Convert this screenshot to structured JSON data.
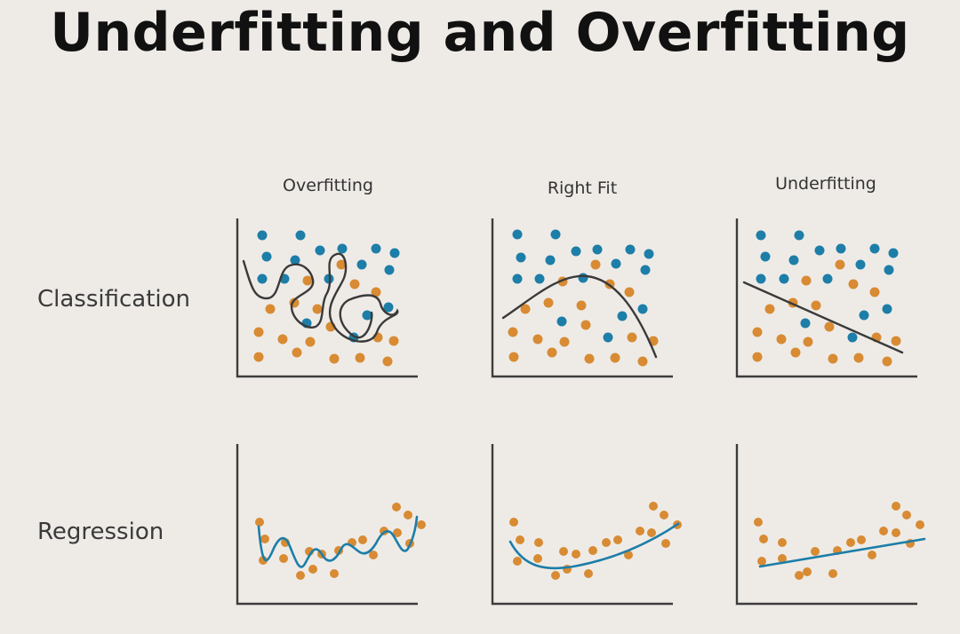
{
  "title": "Underfitting and Overfitting",
  "columns": [
    "Overfitting",
    "Right Fit",
    "Underfitting"
  ],
  "rows": [
    "Classification",
    "Regression"
  ],
  "colors": {
    "axis": "#3c3c3c",
    "class_a": "#1d7ea8",
    "class_b": "#d88b33",
    "classification_curve": "#3a3a3a",
    "regression_curve": "#1d7ea8",
    "background": "#eeebe7"
  }
}
